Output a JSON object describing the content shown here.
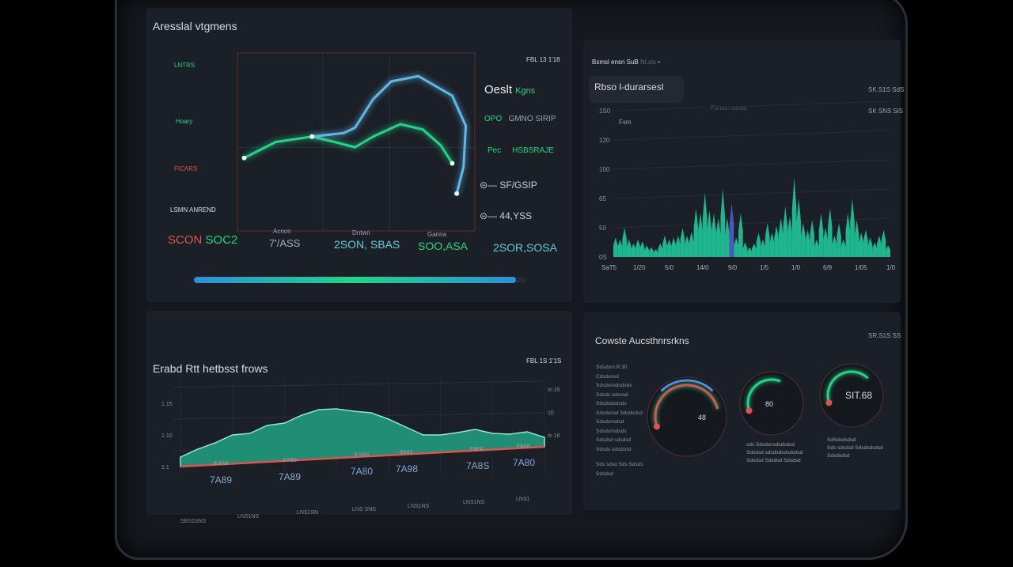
{
  "colors": {
    "accent_green": "#22d48a",
    "accent_blue": "#5fb8e8",
    "accent_red": "#e0524a",
    "panel": "#1b1f26"
  },
  "panel1": {
    "title": "Aresslal vtgmens",
    "corner": "FBL 13 1'18",
    "left_labels": [
      "LNTRS",
      "Hoary",
      "FICARS",
      "LSMN ANREND"
    ],
    "legend_title": "Oeslt",
    "legend_title_accent": "Kgns",
    "legend": [
      {
        "key": "OPO",
        "value": "GMNO SIRIP"
      },
      {
        "key": "Pec",
        "value": "HSBSRAJE"
      },
      {
        "key": "",
        "value": "SF/GSIP"
      },
      {
        "key": "",
        "value": "44,YSS"
      }
    ],
    "x_ticks": [
      "Acnon",
      "Dntwn",
      "Ganna"
    ],
    "stats": [
      {
        "a": "SCON",
        "b": "SOC2"
      },
      {
        "a": "7'/ASS"
      },
      {
        "a": "2SON, SBAS"
      },
      {
        "a": "SOO,ASA"
      },
      {
        "a": "2SOR,SOSA"
      }
    ],
    "progress": 0.97
  },
  "panel2": {
    "tab": "Bsmsl ensn SuB",
    "tab_sub": "Nt.sls",
    "title": "Rbso l-durarsesl",
    "subtitle": "Fsnsm swsls",
    "corner1": "SK.S1S SdS",
    "corner2": "SK SNS SiS",
    "series_label": "Fsm"
  },
  "panel3": {
    "title": "Erabd Rtt hetbsst frows",
    "corner": "FBL 1S 1'1S",
    "callouts": [
      "7A89",
      "7A89",
      "7A80",
      "7A98",
      "7A8S",
      "7A80"
    ],
    "small_labels": [
      "8 8A8",
      "8 F80",
      "8 F8S",
      "8A80",
      "F8F8",
      "F8A8"
    ],
    "bottom_labels": [
      "SBS1SNS",
      "LNS1NS",
      "LNS1SN",
      "LNS SNS",
      "LNS1NS",
      "LNS1NS",
      "LNS1"
    ]
  },
  "panel4": {
    "title": "Cowste Aucsthnrsrkns",
    "corner": "SR.S1S SS",
    "list": [
      "Sdsdsrn.R.30",
      "Cdsdsnsd",
      "Sdsdsnsdsdsds",
      "Sdsds sdsnsd",
      "Sdsdsdsdsds",
      "Sdsdsnsd Sdsdsdsd",
      "Sdsdsnsdsd",
      "Sdsdsnsdsds",
      "Sdsdsd sdsdsd",
      "Sdsds sdsdsnd",
      "Sds sdsd Sds Sdsds",
      "Sdsdsd"
    ],
    "gauge_captions": [
      [
        "sds Sdsdsnsdsdsdsd",
        "Sdsdsd sdsdsdsdsdsdsd",
        "Sdsdsd Sdsdsd Sdsdsd"
      ],
      [
        "SdSdsdsdsd",
        "Sds sdsdsd Sdsdsdsdsd",
        "Sdsdsdsd"
      ]
    ]
  },
  "chart_data": [
    {
      "type": "line",
      "title": "",
      "xlim": [
        0,
        105
      ],
      "ylim": [
        0,
        100
      ],
      "grid": true,
      "series": [
        {
          "color": "#22d48a",
          "points": [
            [
              3,
              41
            ],
            [
              17,
              50
            ],
            [
              33,
              53
            ],
            [
              43,
              50
            ],
            [
              52,
              47
            ],
            [
              60,
              53
            ],
            [
              72,
              60
            ],
            [
              82,
              57
            ],
            [
              90,
              48
            ],
            [
              95,
              38
            ]
          ]
        },
        {
          "color": "#5fb8e8",
          "points": [
            [
              33,
              53
            ],
            [
              47,
              55
            ],
            [
              52,
              58
            ],
            [
              60,
              74
            ],
            [
              68,
              84
            ],
            [
              80,
              87
            ],
            [
              95,
              76
            ],
            [
              101,
              59
            ],
            [
              100,
              36
            ],
            [
              97,
              21
            ]
          ]
        }
      ]
    },
    {
      "type": "bar",
      "ylim": [
        0,
        150
      ],
      "y_ticks": [
        "0S",
        "50",
        "65",
        "100",
        "120",
        "1S0"
      ],
      "x_ticks": [
        "SaT5",
        "1/20",
        "5/0",
        "14/0",
        "9/0",
        "1/5",
        "1/0",
        "6/9",
        "1/05",
        "1/0"
      ],
      "highlight_index": 26,
      "highlight_color": "#4a5fd0",
      "values": [
        20,
        18,
        30,
        18,
        14,
        18,
        16,
        12,
        10,
        8,
        14,
        22,
        18,
        20,
        22,
        30,
        22,
        26,
        50,
        45,
        66,
        48,
        45,
        40,
        70,
        40,
        55,
        20,
        45,
        15,
        10,
        14,
        25,
        18,
        35,
        25,
        32,
        40,
        52,
        42,
        82,
        60,
        35,
        28,
        38,
        18,
        45,
        30,
        50,
        22,
        35,
        18,
        45,
        60,
        38,
        25,
        28,
        20,
        15,
        22,
        28,
        12
      ]
    },
    {
      "type": "area",
      "ylim": [
        0,
        100
      ],
      "y_ticks_left": [
        "1.1",
        "1.10",
        "1.15"
      ],
      "y_ticks_right": [
        "m 16",
        "10",
        "m 15"
      ],
      "values": [
        12,
        22,
        30,
        40,
        42,
        52,
        55,
        65,
        72,
        73,
        70,
        68,
        60,
        50,
        40,
        40,
        43,
        47,
        42,
        41,
        44,
        37
      ]
    },
    {
      "type": "gauge",
      "values": [
        {
          "label": "48",
          "fraction": 0.85
        },
        {
          "label": "80",
          "fraction": 0.6
        },
        {
          "label": "SIT.68",
          "fraction": 0.7
        }
      ]
    }
  ]
}
